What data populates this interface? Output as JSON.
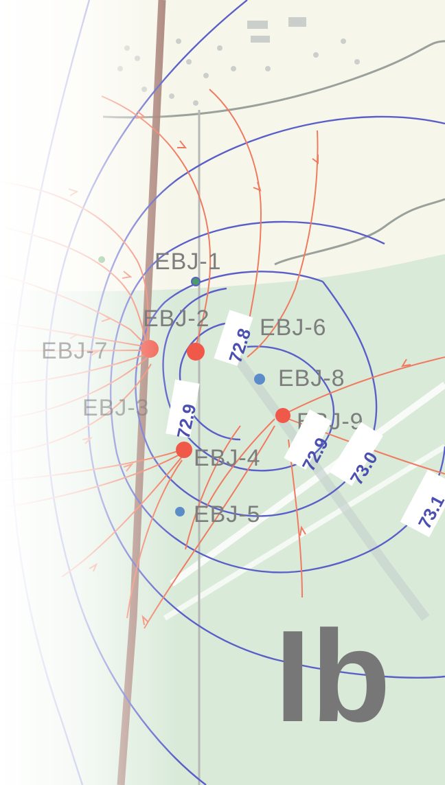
{
  "map": {
    "zone_label": "Ib",
    "wells": [
      {
        "name": "EBJ-1"
      },
      {
        "name": "EBJ-2"
      },
      {
        "name": "EBJ-6"
      },
      {
        "name": "EBJ-7"
      },
      {
        "name": "EBJ-8"
      },
      {
        "name": "EBJ-9"
      },
      {
        "name": "EBJ-3"
      },
      {
        "name": "EBJ-4"
      },
      {
        "name": "EBJ-5"
      }
    ],
    "contour_labels": [
      "72.8",
      "72.9",
      "72.9",
      "72.9",
      "73.0",
      "73.1"
    ],
    "colors": {
      "contour": "#5a5fc8",
      "flowline": "#f07a60",
      "well": "#f0584a",
      "observation_well": "#4a9a6a",
      "road": "#a0766a",
      "land": "#d9ead9"
    }
  }
}
